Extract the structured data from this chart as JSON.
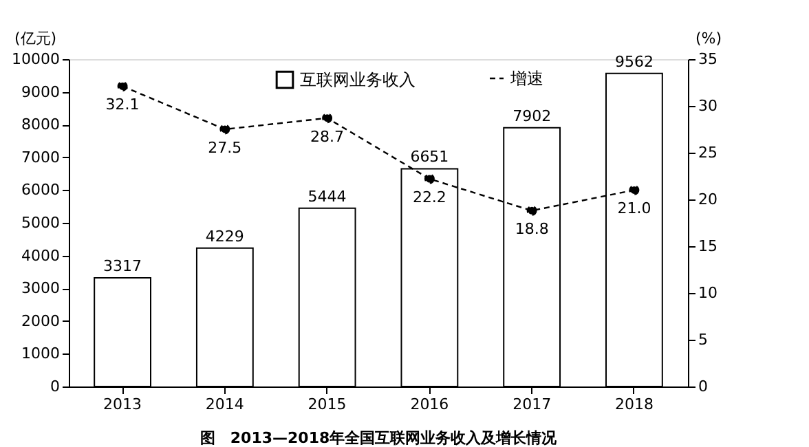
{
  "chart_data": {
    "type": "bar",
    "categories": [
      "2013",
      "2014",
      "2015",
      "2016",
      "2017",
      "2018"
    ],
    "ylabel": "(亿元)",
    "y2label": "(%)",
    "ylim": [
      0,
      10000
    ],
    "yticks": [
      0,
      1000,
      2000,
      3000,
      4000,
      5000,
      6000,
      7000,
      8000,
      9000,
      10000
    ],
    "y2lim": [
      0,
      35
    ],
    "y2ticks": [
      0,
      5,
      10,
      15,
      20,
      25,
      30,
      35
    ],
    "series": [
      {
        "name": "互联网业务收入",
        "color": "#ffffff",
        "values": [
          3317,
          4229,
          5444,
          6651,
          7902,
          9562
        ]
      },
      {
        "name": "增速",
        "type": "line",
        "axis": "y2",
        "color": "#000000",
        "marker": "circle",
        "line_style": "dashed",
        "values": [
          32.1,
          27.5,
          28.7,
          22.2,
          18.8,
          21.0
        ],
        "value_labels": [
          "32.1",
          "27.5",
          "28.7",
          "22.2",
          "18.8",
          "21.0"
        ]
      }
    ],
    "data_labels": true,
    "legend": "top",
    "grid": false,
    "annotations": [
      "图　2013—2018年全国互联网业务收入及增长情况"
    ]
  }
}
